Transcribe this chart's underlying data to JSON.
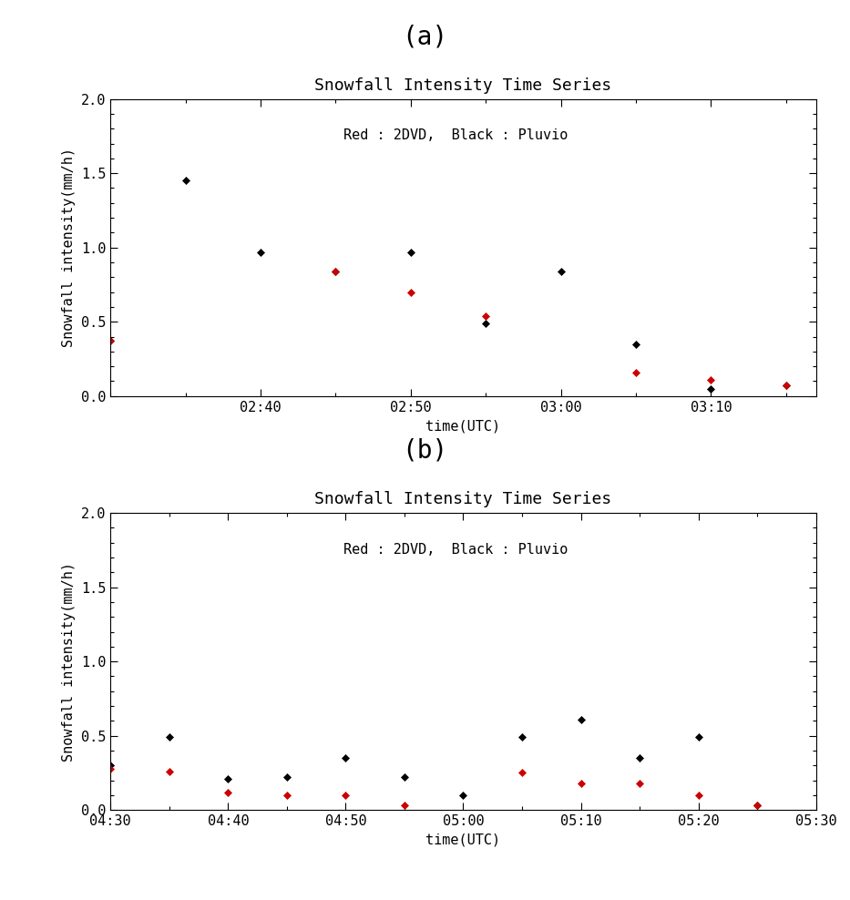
{
  "panel_a": {
    "title": "Snowfall Intensity Time Series",
    "xlabel": "time(UTC)",
    "ylabel": "Snowfall intensity(mm/h)",
    "annotation": "Red : 2DVD,  Black : Pluvio",
    "xlim_minutes": [
      150,
      197
    ],
    "ylim": [
      0.0,
      2.0
    ],
    "xticks_minutes": [
      160,
      170,
      180,
      190
    ],
    "xtick_labels": [
      "02:40",
      "02:50",
      "03:00",
      "03:10"
    ],
    "yticks": [
      0.0,
      0.5,
      1.0,
      1.5,
      2.0
    ],
    "black_x_min": [
      150,
      155,
      160,
      165,
      170,
      175,
      180,
      185,
      190,
      195
    ],
    "black_y": [
      0.37,
      1.45,
      0.97,
      0.84,
      0.97,
      0.49,
      0.84,
      0.35,
      0.05,
      0.07
    ],
    "red_x_min": [
      150,
      165,
      170,
      175,
      185,
      190,
      195
    ],
    "red_y": [
      0.37,
      0.84,
      0.7,
      0.54,
      0.16,
      0.11,
      0.07
    ]
  },
  "panel_b": {
    "title": "Snowfall Intensity Time Series",
    "xlabel": "time(UTC)",
    "ylabel": "Snowfall intensity(mm/h)",
    "annotation": "Red : 2DVD,  Black : Pluvio",
    "xlim_minutes": [
      270,
      330
    ],
    "ylim": [
      0.0,
      2.0
    ],
    "xticks_minutes": [
      270,
      280,
      290,
      300,
      310,
      320,
      330
    ],
    "xtick_labels": [
      "04:30",
      "04:40",
      "04:50",
      "05:00",
      "05:10",
      "05:20",
      "05:30"
    ],
    "yticks": [
      0.0,
      0.5,
      1.0,
      1.5,
      2.0
    ],
    "black_x_min": [
      270,
      275,
      280,
      285,
      290,
      295,
      300,
      305,
      310,
      315,
      320,
      325
    ],
    "black_y": [
      0.3,
      0.49,
      0.21,
      0.22,
      0.35,
      0.22,
      0.1,
      0.49,
      0.61,
      0.35,
      0.49,
      0.03
    ],
    "red_x_min": [
      270,
      275,
      280,
      285,
      290,
      295,
      305,
      310,
      315,
      320,
      325
    ],
    "red_y": [
      0.28,
      0.26,
      0.12,
      0.1,
      0.1,
      0.03,
      0.25,
      0.18,
      0.18,
      0.1,
      0.03
    ]
  },
  "panel_label_a": "(a)",
  "panel_label_b": "(b)",
  "marker": "D",
  "markersize": 4,
  "black_color": "#000000",
  "red_color": "#cc0000",
  "background_color": "#ffffff",
  "font_family": "monospace",
  "title_fontsize": 13,
  "label_fontsize": 11,
  "tick_fontsize": 11,
  "annotation_fontsize": 11,
  "panel_label_fontsize": 20
}
